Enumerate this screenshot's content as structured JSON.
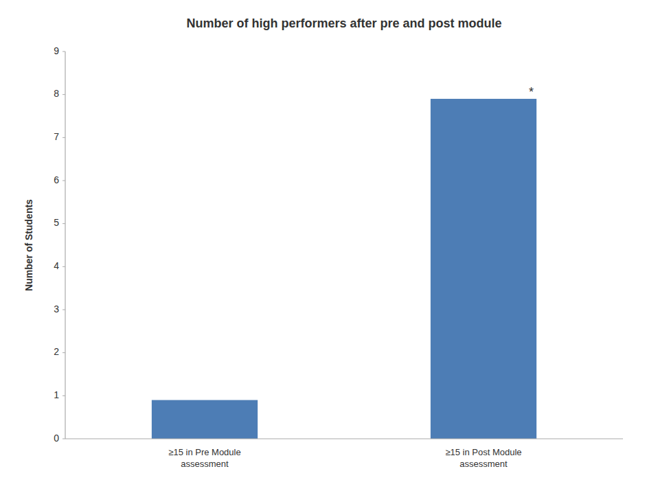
{
  "chart_data": {
    "type": "bar",
    "title": "Number of high performers after pre and post module",
    "categories": [
      "≥15 in Pre Module\nassessment",
      "≥15 in Post Module\nassessment"
    ],
    "values": [
      0.9,
      7.9
    ],
    "color": "#4d7db5",
    "ylabel": "Number of Students",
    "ylim": [
      0,
      9
    ],
    "yticks": [
      0,
      1,
      2,
      3,
      4,
      5,
      6,
      7,
      8,
      9
    ],
    "grid": false,
    "annotations": [
      {
        "text": "*",
        "category": "≥15 in Post Module\nassessment"
      }
    ]
  }
}
